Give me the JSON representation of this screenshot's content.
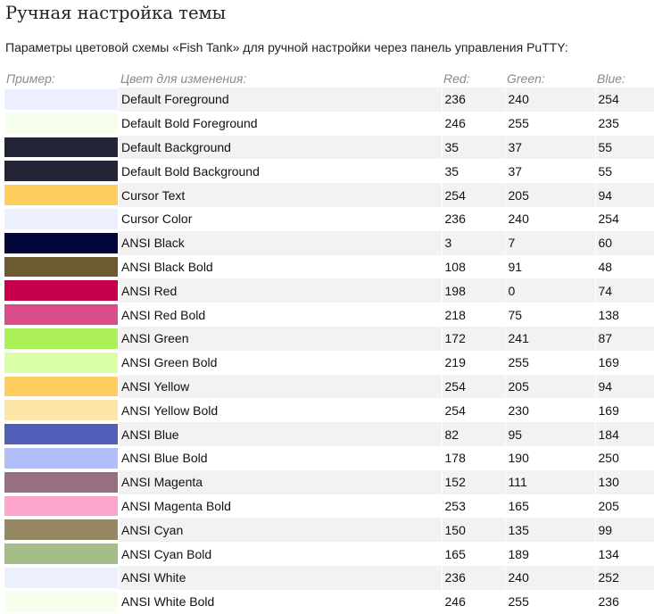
{
  "page": {
    "title": "Ручная настройка темы",
    "subtitle": "Параметры цветовой схемы «Fish Tank» для ручной настройки через панель управления PuTTY:"
  },
  "table": {
    "headers": {
      "sample": "Пример:",
      "color": "Цвет для изменения:",
      "red": "Red:",
      "green": "Green:",
      "blue": "Blue:"
    },
    "rows": [
      {
        "name": "Default Foreground",
        "red": "236",
        "green": "240",
        "blue": "254",
        "swatch": "#ecf0fe"
      },
      {
        "name": "Default Bold Foreground",
        "red": "246",
        "green": "255",
        "blue": "235",
        "swatch": "#f6ffeb"
      },
      {
        "name": "Default Background",
        "red": "35",
        "green": "37",
        "blue": "55",
        "swatch": "#232537"
      },
      {
        "name": "Default Bold Background",
        "red": "35",
        "green": "37",
        "blue": "55",
        "swatch": "#232537"
      },
      {
        "name": "Cursor Text",
        "red": "254",
        "green": "205",
        "blue": "94",
        "swatch": "#fecd5e"
      },
      {
        "name": "Cursor Color",
        "red": "236",
        "green": "240",
        "blue": "254",
        "swatch": "#ecf0fe"
      },
      {
        "name": "ANSI Black",
        "red": "3",
        "green": "7",
        "blue": "60",
        "swatch": "#03073c"
      },
      {
        "name": "ANSI Black Bold",
        "red": "108",
        "green": "91",
        "blue": "48",
        "swatch": "#6c5b30"
      },
      {
        "name": "ANSI Red",
        "red": "198",
        "green": "0",
        "blue": "74",
        "swatch": "#c6004a"
      },
      {
        "name": "ANSI Red Bold",
        "red": "218",
        "green": "75",
        "blue": "138",
        "swatch": "#da4b8a"
      },
      {
        "name": "ANSI Green",
        "red": "172",
        "green": "241",
        "blue": "87",
        "swatch": "#acf157"
      },
      {
        "name": "ANSI Green Bold",
        "red": "219",
        "green": "255",
        "blue": "169",
        "swatch": "#dbffa9"
      },
      {
        "name": "ANSI Yellow",
        "red": "254",
        "green": "205",
        "blue": "94",
        "swatch": "#fecd5e"
      },
      {
        "name": "ANSI Yellow Bold",
        "red": "254",
        "green": "230",
        "blue": "169",
        "swatch": "#fee6a9"
      },
      {
        "name": "ANSI Blue",
        "red": "82",
        "green": "95",
        "blue": "184",
        "swatch": "#525fb8"
      },
      {
        "name": "ANSI Blue Bold",
        "red": "178",
        "green": "190",
        "blue": "250",
        "swatch": "#b2befa"
      },
      {
        "name": "ANSI Magenta",
        "red": "152",
        "green": "111",
        "blue": "130",
        "swatch": "#986f82"
      },
      {
        "name": "ANSI Magenta Bold",
        "red": "253",
        "green": "165",
        "blue": "205",
        "swatch": "#fda5cd"
      },
      {
        "name": "ANSI Cyan",
        "red": "150",
        "green": "135",
        "blue": "99",
        "swatch": "#968763"
      },
      {
        "name": "ANSI Cyan Bold",
        "red": "165",
        "green": "189",
        "blue": "134",
        "swatch": "#a5bd86"
      },
      {
        "name": "ANSI White",
        "red": "236",
        "green": "240",
        "blue": "252",
        "swatch": "#ecf0fc"
      },
      {
        "name": "ANSI White Bold",
        "red": "246",
        "green": "255",
        "blue": "236",
        "swatch": "#f6ffec"
      }
    ]
  }
}
